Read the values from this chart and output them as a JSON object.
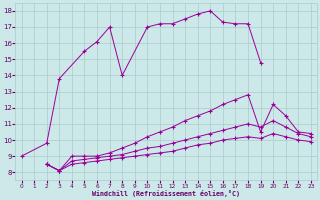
{
  "background_color": "#cce8e8",
  "grid_color": "#aacccc",
  "line_color": "#990099",
  "marker": "+",
  "xlabel": "Windchill (Refroidissement éolien,°C)",
  "xlabel_color": "#660066",
  "tick_color": "#660066",
  "xlim": [
    -0.5,
    23.5
  ],
  "ylim": [
    7.5,
    18.5
  ],
  "xticks": [
    0,
    1,
    2,
    3,
    4,
    5,
    6,
    7,
    8,
    9,
    10,
    11,
    12,
    13,
    14,
    15,
    16,
    17,
    18,
    19,
    20,
    21,
    22,
    23
  ],
  "yticks": [
    8,
    9,
    10,
    11,
    12,
    13,
    14,
    15,
    16,
    17,
    18
  ],
  "lines": [
    {
      "x": [
        0,
        2,
        3,
        5,
        6,
        7,
        8,
        10,
        11,
        12,
        13,
        14,
        15,
        16,
        17,
        18,
        19
      ],
      "y": [
        9.0,
        9.8,
        13.8,
        15.5,
        16.1,
        17.0,
        14.0,
        17.0,
        17.2,
        17.2,
        17.5,
        17.8,
        18.0,
        17.3,
        17.2,
        17.2,
        14.8
      ]
    },
    {
      "x": [
        2,
        3,
        4,
        5,
        6,
        7,
        8,
        9,
        10,
        11,
        12,
        13,
        14,
        15,
        16,
        17,
        18,
        19,
        20,
        21,
        22,
        23
      ],
      "y": [
        8.5,
        8.1,
        9.0,
        9.0,
        9.0,
        9.2,
        9.5,
        9.8,
        10.2,
        10.5,
        10.8,
        11.2,
        11.5,
        11.8,
        12.2,
        12.5,
        12.8,
        10.5,
        12.2,
        11.5,
        10.5,
        10.4
      ]
    },
    {
      "x": [
        2,
        3,
        4,
        5,
        6,
        7,
        8,
        9,
        10,
        11,
        12,
        13,
        14,
        15,
        16,
        17,
        18,
        19,
        20,
        21,
        22,
        23
      ],
      "y": [
        8.5,
        8.1,
        8.7,
        8.8,
        8.9,
        9.0,
        9.1,
        9.3,
        9.5,
        9.6,
        9.8,
        10.0,
        10.2,
        10.4,
        10.6,
        10.8,
        11.0,
        10.8,
        11.2,
        10.8,
        10.4,
        10.2
      ]
    },
    {
      "x": [
        2,
        3,
        4,
        5,
        6,
        7,
        8,
        9,
        10,
        11,
        12,
        13,
        14,
        15,
        16,
        17,
        18,
        19,
        20,
        21,
        22,
        23
      ],
      "y": [
        8.5,
        8.1,
        8.5,
        8.6,
        8.7,
        8.8,
        8.9,
        9.0,
        9.1,
        9.2,
        9.3,
        9.5,
        9.7,
        9.8,
        10.0,
        10.1,
        10.2,
        10.1,
        10.4,
        10.2,
        10.0,
        9.9
      ]
    }
  ]
}
